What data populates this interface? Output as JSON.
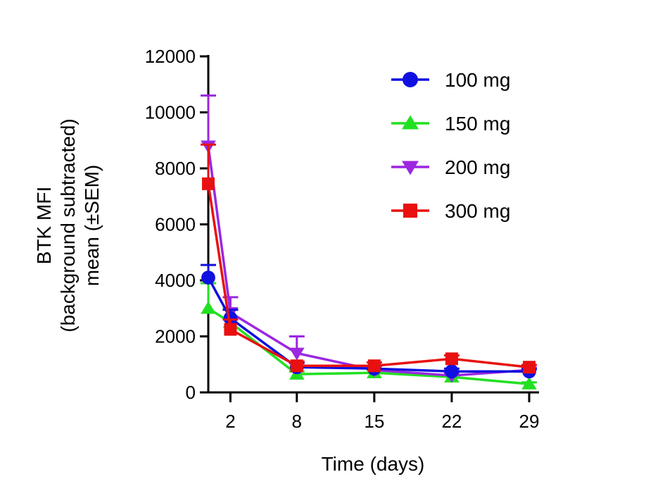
{
  "chart_data": {
    "type": "line",
    "title": "",
    "xlabel": "Time (days)",
    "ylabel_line1": "BTK MFI",
    "ylabel_line2": "(background subtracted)",
    "ylabel_line3": "mean (±SEM)",
    "xlim": [
      0,
      29
    ],
    "ylim": [
      0,
      12000
    ],
    "x": [
      0,
      2,
      8,
      15,
      22,
      29
    ],
    "xticks": [
      2,
      8,
      15,
      22,
      29
    ],
    "xtick_labels": [
      "2",
      "8",
      "15",
      "22",
      "29"
    ],
    "yticks": [
      0,
      2000,
      4000,
      6000,
      8000,
      10000,
      12000
    ],
    "ytick_labels": [
      "0",
      "2000",
      "4000",
      "6000",
      "8000",
      "10000",
      "12000"
    ],
    "legend_position": "top-right",
    "series": [
      {
        "name": "100 mg",
        "color": "#1010e0",
        "marker": "circle",
        "values": [
          4100,
          2650,
          900,
          850,
          750,
          750
        ],
        "sem": [
          450,
          300,
          150,
          100,
          100,
          80
        ]
      },
      {
        "name": "150 mg",
        "color": "#22e022",
        "marker": "triangle-up",
        "values": [
          3000,
          2500,
          650,
          700,
          550,
          300
        ],
        "sem": [
          900,
          500,
          100,
          100,
          80,
          60
        ]
      },
      {
        "name": "200 mg",
        "color": "#9b27e0",
        "marker": "triangle-down",
        "values": [
          8800,
          2850,
          1400,
          800,
          600,
          800
        ],
        "sem": [
          1800,
          550,
          600,
          150,
          100,
          80
        ]
      },
      {
        "name": "300 mg",
        "color": "#e81010",
        "marker": "square",
        "values": [
          7450,
          2250,
          950,
          950,
          1200,
          900
        ],
        "sem": [
          1400,
          350,
          150,
          120,
          120,
          80
        ]
      }
    ]
  }
}
